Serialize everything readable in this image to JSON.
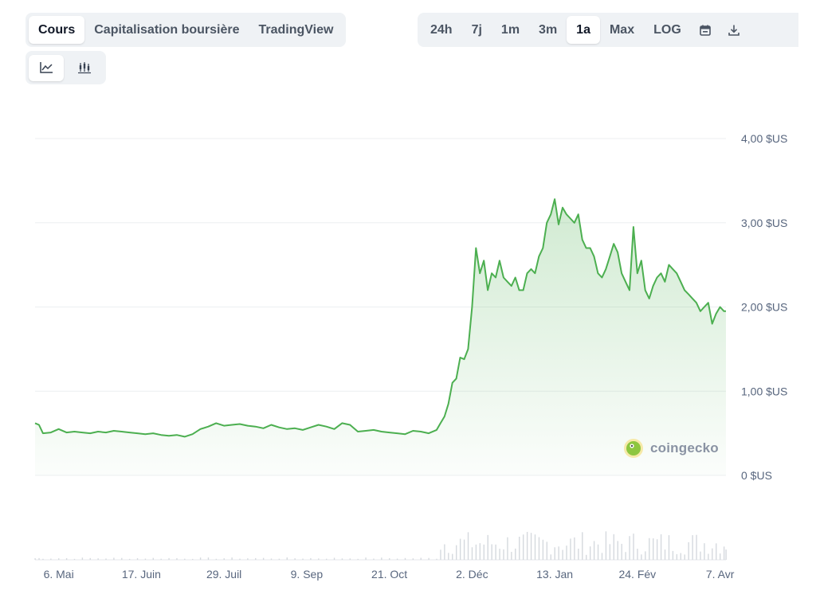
{
  "tabs": [
    {
      "label": "Cours",
      "active": true
    },
    {
      "label": "Capitalisation boursière",
      "active": false
    },
    {
      "label": "TradingView",
      "active": false
    }
  ],
  "ranges": [
    {
      "label": "24h",
      "active": false
    },
    {
      "label": "7j",
      "active": false
    },
    {
      "label": "1m",
      "active": false
    },
    {
      "label": "3m",
      "active": false
    },
    {
      "label": "1a",
      "active": true
    },
    {
      "label": "Max",
      "active": false
    },
    {
      "label": "LOG",
      "active": false
    }
  ],
  "icons": {
    "calendar": "calendar-icon",
    "download": "download-icon",
    "line_chart": "line-chart-icon",
    "candle_chart": "candlestick-chart-icon"
  },
  "watermark": {
    "text": "coingecko"
  },
  "colors": {
    "line": "#4caf50",
    "fill": "#4caf50",
    "volume": "#d5d9de",
    "grid": "#eceff1"
  },
  "chart_data": {
    "type": "area",
    "y_ticks": [
      "0 $US",
      "1,00 $US",
      "2,00 $US",
      "3,00 $US",
      "4,00 $US"
    ],
    "y_tick_values": [
      0,
      1,
      2,
      3,
      4
    ],
    "x_ticks": [
      "6. Mai",
      "17. Juin",
      "29. Juil",
      "9. Sep",
      "21. Oct",
      "2. Déc",
      "13. Jan",
      "24. Fév",
      "7. Avr"
    ],
    "x_tick_values": [
      12,
      54,
      96,
      138,
      180,
      222,
      264,
      306,
      348
    ],
    "x_range": [
      0,
      351
    ],
    "ylim": [
      0,
      4
    ],
    "grid": true,
    "series": [
      {
        "x": [
          0,
          2,
          4,
          8,
          12,
          16,
          20,
          24,
          28,
          32,
          36,
          40,
          44,
          48,
          52,
          56,
          60,
          64,
          68,
          72,
          76,
          80,
          84,
          88,
          92,
          96,
          100,
          104,
          108,
          112,
          116,
          120,
          124,
          128,
          132,
          136,
          140,
          144,
          148,
          152,
          156,
          160,
          164,
          168,
          172,
          176,
          180,
          184,
          188,
          192,
          196,
          200,
          204,
          206,
          208,
          210,
          212,
          214,
          216,
          218,
          220,
          222,
          224,
          226,
          228,
          230,
          232,
          234,
          236,
          238,
          240,
          242,
          244,
          246,
          248,
          250,
          252,
          254,
          256,
          258,
          260,
          262,
          264,
          266,
          268,
          270,
          272,
          274,
          276,
          278,
          280,
          282,
          284,
          286,
          288,
          290,
          292,
          294,
          296,
          298,
          300,
          302,
          304,
          306,
          308,
          310,
          312,
          314,
          316,
          318,
          320,
          322,
          324,
          326,
          328,
          330,
          332,
          334,
          336,
          338,
          340,
          342,
          344,
          346,
          348,
          350,
          351
        ],
        "y": [
          0.62,
          0.6,
          0.5,
          0.51,
          0.55,
          0.51,
          0.52,
          0.51,
          0.5,
          0.52,
          0.51,
          0.53,
          0.52,
          0.51,
          0.5,
          0.49,
          0.5,
          0.48,
          0.47,
          0.48,
          0.46,
          0.49,
          0.55,
          0.58,
          0.62,
          0.59,
          0.6,
          0.61,
          0.59,
          0.58,
          0.56,
          0.6,
          0.57,
          0.55,
          0.56,
          0.54,
          0.57,
          0.6,
          0.58,
          0.55,
          0.62,
          0.6,
          0.52,
          0.53,
          0.54,
          0.52,
          0.51,
          0.5,
          0.49,
          0.53,
          0.52,
          0.5,
          0.54,
          0.62,
          0.7,
          0.85,
          1.1,
          1.15,
          1.4,
          1.38,
          1.5,
          2.0,
          2.7,
          2.4,
          2.55,
          2.2,
          2.4,
          2.35,
          2.55,
          2.35,
          2.3,
          2.25,
          2.35,
          2.2,
          2.2,
          2.4,
          2.45,
          2.4,
          2.6,
          2.7,
          3.0,
          3.1,
          3.28,
          2.98,
          3.18,
          3.1,
          3.05,
          3.0,
          3.1,
          2.8,
          2.7,
          2.7,
          2.6,
          2.4,
          2.35,
          2.45,
          2.6,
          2.75,
          2.65,
          2.4,
          2.3,
          2.2,
          2.95,
          2.4,
          2.55,
          2.2,
          2.1,
          2.25,
          2.35,
          2.4,
          2.3,
          2.5,
          2.45,
          2.4,
          2.3,
          2.2,
          2.15,
          2.1,
          2.05,
          1.95,
          2.0,
          2.05,
          1.8,
          1.92,
          2.0,
          1.95,
          1.95
        ]
      }
    ]
  }
}
